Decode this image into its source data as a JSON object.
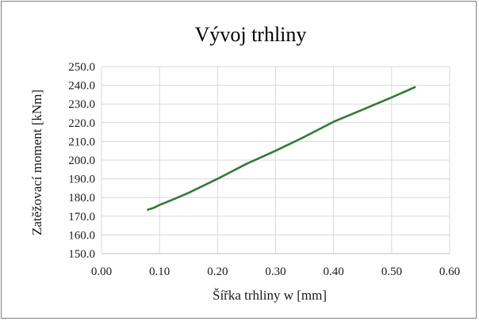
{
  "chart_data": {
    "type": "line",
    "title": "Vývoj trhliny",
    "xlabel": "Šířka trhliny w [mm]",
    "ylabel": "Zatěžovací moment [kNm]",
    "xlim": [
      0.0,
      0.6
    ],
    "ylim": [
      150.0,
      250.0
    ],
    "x_ticks": [
      "0.00",
      "0.10",
      "0.20",
      "0.30",
      "0.40",
      "0.50",
      "0.60"
    ],
    "y_ticks": [
      "150.0",
      "160.0",
      "170.0",
      "180.0",
      "190.0",
      "200.0",
      "210.0",
      "220.0",
      "230.0",
      "240.0",
      "250.0"
    ],
    "grid": true,
    "legend": "none",
    "series": [
      {
        "color": "#2e7d32",
        "x": [
          0.08,
          0.09,
          0.1,
          0.12,
          0.15,
          0.2,
          0.25,
          0.3,
          0.35,
          0.4,
          0.45,
          0.5,
          0.54
        ],
        "y": [
          173.5,
          174.5,
          176.0,
          178.5,
          182.5,
          190.0,
          198.0,
          205.0,
          212.5,
          220.5,
          227.0,
          233.5,
          239.0
        ]
      }
    ]
  }
}
